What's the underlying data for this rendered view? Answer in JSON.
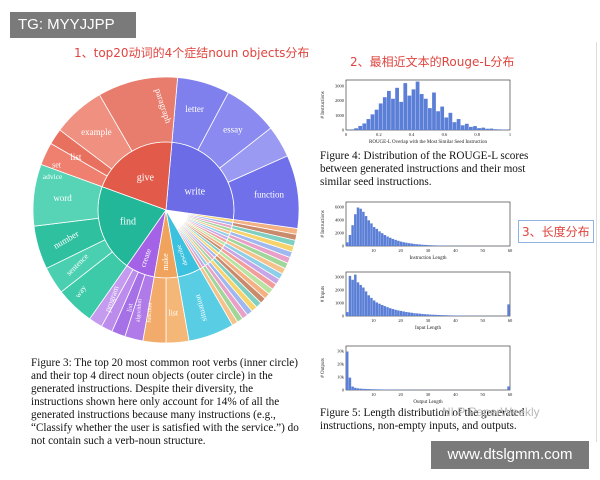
{
  "tags": {
    "top": "TG: MYYJJPP",
    "bottom": "www.dtslgmm.com"
  },
  "notes": {
    "n1": "1、top20动词的4个症结noun objects分布",
    "n2": "2、最相近文本的Rouge-L分布",
    "n3": "3、长度分布"
  },
  "watermark": "NLP PaperWeekly",
  "figure3": {
    "caption": "Figure 3: The top 20 most common root verbs (inner circle) and their top 4 direct noun objects (outer circle) in the generated instructions. Despite their diversity, the instructions shown here only account for 14% of all the generated instructions because many instructions (e.g., “Classify whether the user is satisfied with the service.”) do not contain such a verb-noun structure.",
    "verbs": [
      {
        "label": "write",
        "color": "#6c6ce6"
      },
      {
        "label": "give",
        "color": "#e25b4a"
      },
      {
        "label": "find",
        "color": "#23b79a"
      },
      {
        "label": "create",
        "color": "#a463e6"
      },
      {
        "label": "make",
        "color": "#f0a35c"
      },
      {
        "label": "describe",
        "color": "#3cc1de"
      }
    ],
    "nouns": [
      "letter",
      "essay",
      "function",
      "paragraph",
      "example",
      "list",
      "set",
      "advice",
      "word",
      "number",
      "sentence",
      "way",
      "program",
      "list",
      "algorithm",
      "function",
      "list",
      "situation"
    ]
  },
  "chart_data": [
    {
      "type": "bar",
      "ylabel": "# Instructions",
      "xlabel": "ROUGE-L Overlap with the Most Similar Seed Instruction",
      "xlim": [
        0,
        1
      ],
      "xticks": [
        "0",
        "0.2",
        "0.4",
        "0.6",
        "0.8",
        "1"
      ],
      "yticks": [
        "0",
        "1000",
        "2000",
        "3000"
      ],
      "ylim": [
        0,
        3200
      ],
      "values": [
        5,
        40,
        110,
        260,
        420,
        700,
        1000,
        1300,
        1700,
        2100,
        2500,
        2000,
        2700,
        1800,
        3000,
        2200,
        2600,
        3100,
        2300,
        2000,
        1400,
        2400,
        1200,
        1500,
        800,
        1100,
        500,
        700,
        300,
        400,
        200,
        250,
        120,
        150,
        80,
        90,
        50,
        40,
        30,
        20
      ]
    },
    {
      "type": "bar",
      "ylabel": "# Instructions",
      "xlabel": "Instruction Length",
      "xticks": [
        "10",
        "20",
        "30",
        "40",
        "50",
        "60"
      ],
      "yticks": [
        "0",
        "2000",
        "4000",
        "6000"
      ],
      "ylim": [
        0,
        7200
      ],
      "values": [
        600,
        1800,
        3400,
        5200,
        6300,
        6100,
        5600,
        4900,
        4200,
        3700,
        3100,
        2800,
        2400,
        2100,
        1800,
        1550,
        1350,
        1150,
        1000,
        850,
        720,
        620,
        540,
        460,
        400,
        340,
        290,
        250,
        210,
        180,
        150,
        130,
        110,
        95,
        80,
        70,
        60,
        50,
        45,
        40,
        35,
        30,
        28,
        25,
        22,
        20,
        18,
        16,
        15,
        14,
        13,
        12,
        11,
        10,
        10,
        9,
        9,
        8,
        8,
        9,
        60
      ]
    },
    {
      "type": "bar",
      "ylabel": "# Inputs",
      "xlabel": "Input Length",
      "xticks": [
        "10",
        "20",
        "30",
        "40",
        "50",
        "60"
      ],
      "yticks": [
        "0",
        "1000",
        "2000",
        "3000"
      ],
      "ylim": [
        0,
        3400
      ],
      "values": [
        300,
        3100,
        2800,
        3200,
        2600,
        2400,
        2200,
        1900,
        1600,
        1400,
        1200,
        1050,
        950,
        850,
        760,
        680,
        600,
        540,
        480,
        430,
        390,
        350,
        310,
        280,
        250,
        220,
        200,
        180,
        160,
        140,
        125,
        110,
        100,
        90,
        80,
        72,
        64,
        57,
        50,
        45,
        40,
        36,
        32,
        28,
        25,
        22,
        20,
        18,
        16,
        14,
        12,
        11,
        10,
        9,
        8,
        8,
        7,
        7,
        6,
        6,
        900
      ]
    },
    {
      "type": "bar",
      "ylabel": "# Outputs",
      "xlabel": "Output Length",
      "xticks": [
        "10",
        "20",
        "30",
        "40",
        "50",
        "60"
      ],
      "yticks": [
        "0",
        "10k",
        "20k",
        "30k"
      ],
      "ylim": [
        0,
        32000
      ],
      "values": [
        28000,
        9000,
        2500,
        1600,
        1200,
        1000,
        850,
        760,
        680,
        600,
        540,
        480,
        430,
        390,
        350,
        320,
        290,
        260,
        240,
        220,
        200,
        180,
        165,
        150,
        140,
        130,
        120,
        110,
        100,
        95,
        90,
        85,
        80,
        75,
        70,
        65,
        60,
        56,
        52,
        48,
        45,
        42,
        39,
        36,
        34,
        32,
        30,
        28,
        26,
        24,
        22,
        21,
        20,
        19,
        18,
        17,
        16,
        15,
        14,
        13,
        2600
      ]
    }
  ],
  "figure4": {
    "caption": "Figure 4: Distribution of the ROUGE-L scores between generated instructions and their most similar seed instructions."
  },
  "figure5": {
    "caption": "Figure 5: Length distribution of the generated instructions, non-empty inputs, and outputs."
  }
}
